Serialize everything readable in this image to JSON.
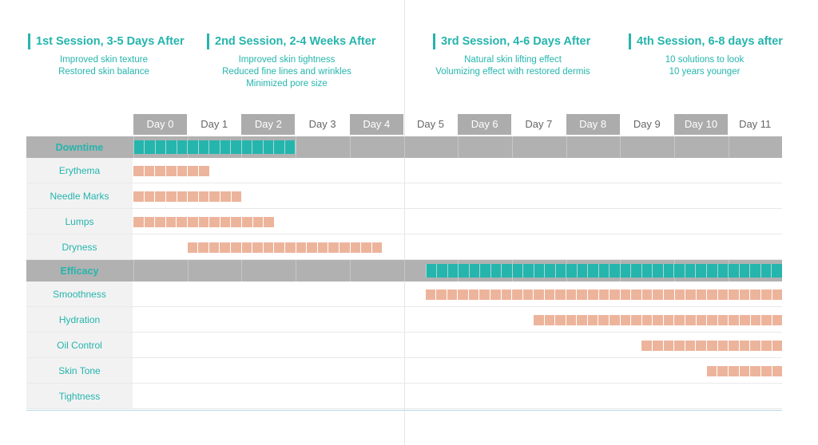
{
  "sessions": [
    {
      "title": "1st Session, 3-5 Days After",
      "lines": [
        "Improved skin texture",
        "Restored skin balance"
      ]
    },
    {
      "title": "2nd Session, 2-4 Weeks After",
      "lines": [
        "Improved skin tightness",
        "Reduced fine lines and wrinkles",
        "Minimized pore size"
      ]
    },
    {
      "title": "3rd Session, 4-6 Days After",
      "lines": [
        "Natural skin lifting effect",
        "Volumizing effect with restored dermis"
      ]
    },
    {
      "title": "4th Session, 6-8 days after",
      "lines": [
        "10 solutions to look",
        "10 years younger"
      ]
    }
  ],
  "chart_data": {
    "type": "gantt",
    "days": [
      "Day 0",
      "Day 1",
      "Day 2",
      "Day 3",
      "Day 4",
      "Day 5",
      "Day 6",
      "Day 7",
      "Day 8",
      "Day 9",
      "Day 10",
      "Day 11"
    ],
    "highlighted_days": [
      "Day 0",
      "Day 2",
      "Day 4",
      "Day 6",
      "Day 8",
      "Day 10"
    ],
    "groups": [
      {
        "name": "Downtime",
        "range": [
          0,
          3
        ],
        "items": [
          {
            "name": "Erythema",
            "range": [
              0,
              1.4
            ]
          },
          {
            "name": "Needle Marks",
            "range": [
              0,
              2
            ]
          },
          {
            "name": "Lumps",
            "range": [
              0,
              2.6
            ]
          },
          {
            "name": "Dryness",
            "range": [
              1,
              4.6
            ]
          }
        ]
      },
      {
        "name": "Efficacy",
        "range": [
          5.4,
          12
        ],
        "items": [
          {
            "name": "Smoothness",
            "range": [
              5.4,
              12
            ]
          },
          {
            "name": "Hydration",
            "range": [
              7.4,
              12
            ]
          },
          {
            "name": "Oil Control",
            "range": [
              9.4,
              12
            ]
          },
          {
            "name": "Skin Tone",
            "range": [
              10.6,
              12
            ]
          },
          {
            "name": "Tightness",
            "range": null
          }
        ]
      }
    ],
    "colors": {
      "accent": "#25b5ad",
      "bar_pink": "#edb49c",
      "header_grey": "#acacac",
      "category_grey": "#b1b1b1"
    }
  }
}
